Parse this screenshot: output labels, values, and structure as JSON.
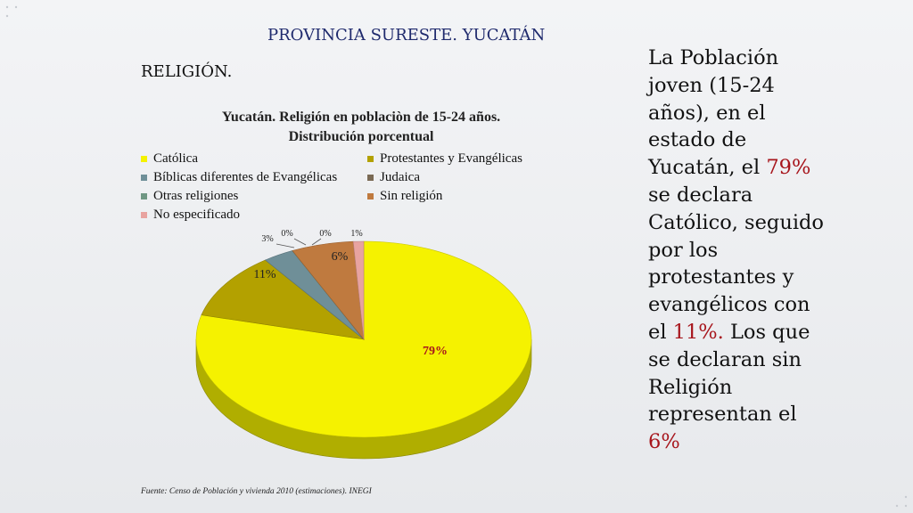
{
  "slide": {
    "header": "PROVINCIA SURESTE. YUCATÁN",
    "section": "RELIGIÓN.",
    "source": "Fuente: Censo de Población y vivienda 2010 (estimaciones). INEGI",
    "body_parts": {
      "p1": "La Población joven (15-24 años), en el estado de Yucatán, el ",
      "h1": "79%",
      "p2": " se declara Católico, seguido por los protestantes y evangélicos con el ",
      "h2": "11%.",
      "p3": " Los que se declaran sin Religión representan el ",
      "h3": "6%"
    },
    "highlight_color": "#a7151c"
  },
  "chart_data": {
    "type": "pie",
    "title": "Yucatán. Religión en poblaciòn de 15-24 años. Distribución porcentual",
    "title_lines": [
      "Yucatán. Religión en poblaciòn de 15-24 años.",
      "Distribución porcentual"
    ],
    "legend_position": "top",
    "slices": [
      {
        "name": "Católica",
        "value": 79,
        "label": "79%",
        "color": "#f5f200"
      },
      {
        "name": "Protestantes y Evangélicas",
        "value": 11,
        "label": "11%",
        "color": "#b3a100"
      },
      {
        "name": "Bíblicas diferentes de Evangélicas",
        "value": 3,
        "label": "3%",
        "color": "#6f8f98"
      },
      {
        "name": "Judaica",
        "value": 0,
        "label": "0%",
        "color": "#7a6a54"
      },
      {
        "name": "Otras religiones",
        "value": 0,
        "label": "0%",
        "color": "#6f9783"
      },
      {
        "name": "Sin religión",
        "value": 6,
        "label": "6%",
        "color": "#bf7a3f"
      },
      {
        "name": "No especificado",
        "value": 1,
        "label": "1%",
        "color": "#e8a3a0"
      }
    ]
  }
}
